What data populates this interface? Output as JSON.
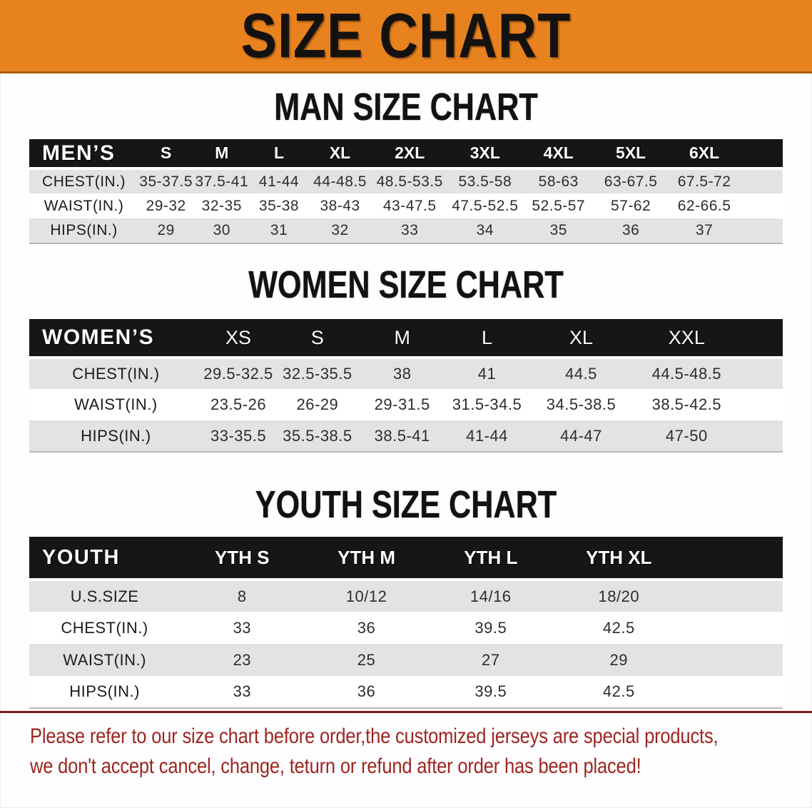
{
  "banner": {
    "title": "SIZE CHART"
  },
  "colors": {
    "banner_bg": "#E8821E",
    "banner_border": "#AA5E12",
    "header_bar": "#161616",
    "row_shade": "#E3E3E3",
    "divider": "#7C1B17",
    "footer_text": "#9E2420"
  },
  "sections": [
    {
      "heading": "MAN SIZE CHART",
      "table": {
        "header_label": "MEN’S",
        "columns": [
          "S",
          "M",
          "L",
          "XL",
          "2XL",
          "3XL",
          "4XL",
          "5XL",
          "6XL"
        ],
        "rows": [
          {
            "label": "CHEST(IN.)",
            "values": [
              "35-37.5",
              "37.5-41",
              "41-44",
              "44-48.5",
              "48.5-53.5",
              "53.5-58",
              "58-63",
              "63-67.5",
              "67.5-72"
            ]
          },
          {
            "label": "WAIST(IN.)",
            "values": [
              "29-32",
              "32-35",
              "35-38",
              "38-43",
              "43-47.5",
              "47.5-52.5",
              "52.5-57",
              "57-62",
              "62-66.5"
            ]
          },
          {
            "label": "HIPS(IN.)",
            "values": [
              "29",
              "30",
              "31",
              "32",
              "33",
              "34",
              "35",
              "36",
              "37"
            ]
          }
        ]
      }
    },
    {
      "heading": "WOMEN SIZE CHART",
      "table": {
        "header_label": "WOMEN’S",
        "columns": [
          "XS",
          "S",
          "M",
          "L",
          "XL",
          "XXL"
        ],
        "rows": [
          {
            "label": "CHEST(IN.)",
            "values": [
              "29.5-32.5",
              "32.5-35.5",
              "38",
              "41",
              "44.5",
              "44.5-48.5"
            ]
          },
          {
            "label": "WAIST(IN.)",
            "values": [
              "23.5-26",
              "26-29",
              "29-31.5",
              "31.5-34.5",
              "34.5-38.5",
              "38.5-42.5"
            ]
          },
          {
            "label": "HIPS(IN.)",
            "values": [
              "33-35.5",
              "35.5-38.5",
              "38.5-41",
              "41-44",
              "44-47",
              "47-50"
            ]
          }
        ]
      }
    },
    {
      "heading": "YOUTH SIZE CHART",
      "table": {
        "header_label": "YOUTH",
        "columns": [
          "YTH S",
          "YTH M",
          "YTH L",
          "YTH XL"
        ],
        "rows": [
          {
            "label": "U.S.SIZE",
            "values": [
              "8",
              "10/12",
              "14/16",
              "18/20"
            ]
          },
          {
            "label": "CHEST(IN.)",
            "values": [
              "33",
              "36",
              "39.5",
              "42.5"
            ]
          },
          {
            "label": "WAIST(IN.)",
            "values": [
              "23",
              "25",
              "27",
              "29"
            ]
          },
          {
            "label": "HIPS(IN.)",
            "values": [
              "33",
              "36",
              "39.5",
              "42.5"
            ]
          }
        ]
      }
    }
  ],
  "footer": {
    "line1": "Please refer to our size chart before order,the customized jerseys are special products,",
    "line2": "we don't accept cancel, change, teturn or refund after order has been placed!"
  }
}
